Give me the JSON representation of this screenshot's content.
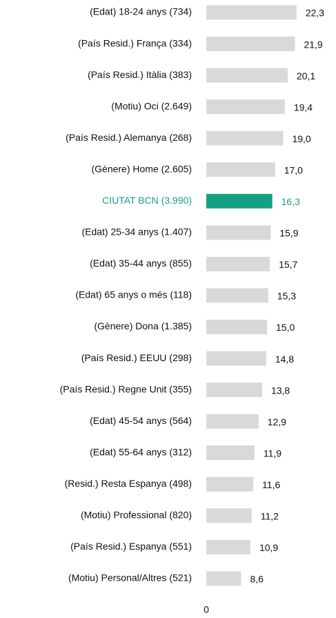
{
  "chart_data": {
    "type": "bar",
    "orientation": "horizontal",
    "categories": [
      "(Edat) 18-24 anys (734)",
      "(País Resid.) França (334)",
      "(País Resid.) Itàlia (383)",
      "(Motiu) Oci (2.649)",
      "(País Resid.) Alemanya (268)",
      "(Gènere) Home (2.605)",
      "CIUTAT BCN (3.990)",
      "(Edat) 25-34 anys  (1.407)",
      "(Edat) 35-44 anys (855)",
      "(Edat) 65 anys o més (118)",
      "(Gènere) Dona (1.385)",
      "(País Resid.) EEUU (298)",
      "(País Resid.) Regne Unit (355)",
      "(Edat) 45-54 anys (564)",
      "(Edat) 55-64 anys (312)",
      "(Resid.) Resta Espanya (498)",
      "(Motiu) Professional (820)",
      "(País Resid.) Espanya (551)",
      "(Motiu) Personal/Altres (521)"
    ],
    "values": [
      22.3,
      21.9,
      20.1,
      19.4,
      19.0,
      17.0,
      16.3,
      15.9,
      15.7,
      15.3,
      15.0,
      14.8,
      13.8,
      12.9,
      11.9,
      11.6,
      11.2,
      10.9,
      8.6
    ],
    "value_labels": [
      "22,3",
      "21,9",
      "20,1",
      "19,4",
      "19,0",
      "17,0",
      "16,3",
      "15,9",
      "15,7",
      "15,3",
      "15,0",
      "14,8",
      "13,8",
      "12,9",
      "11,9",
      "11,6",
      "11,2",
      "10,9",
      "8,6"
    ],
    "color": "#d9d9d9",
    "colors": [
      "#d9d9d9",
      "#d9d9d9",
      "#d9d9d9",
      "#d9d9d9",
      "#d9d9d9",
      "#d9d9d9",
      "#13a085",
      "#d9d9d9",
      "#d9d9d9",
      "#d9d9d9",
      "#d9d9d9",
      "#d9d9d9",
      "#d9d9d9",
      "#d9d9d9",
      "#d9d9d9",
      "#d9d9d9",
      "#d9d9d9",
      "#d9d9d9",
      "#d9d9d9"
    ],
    "xlim": [
      0,
      30
    ],
    "xticks": [
      0
    ]
  }
}
